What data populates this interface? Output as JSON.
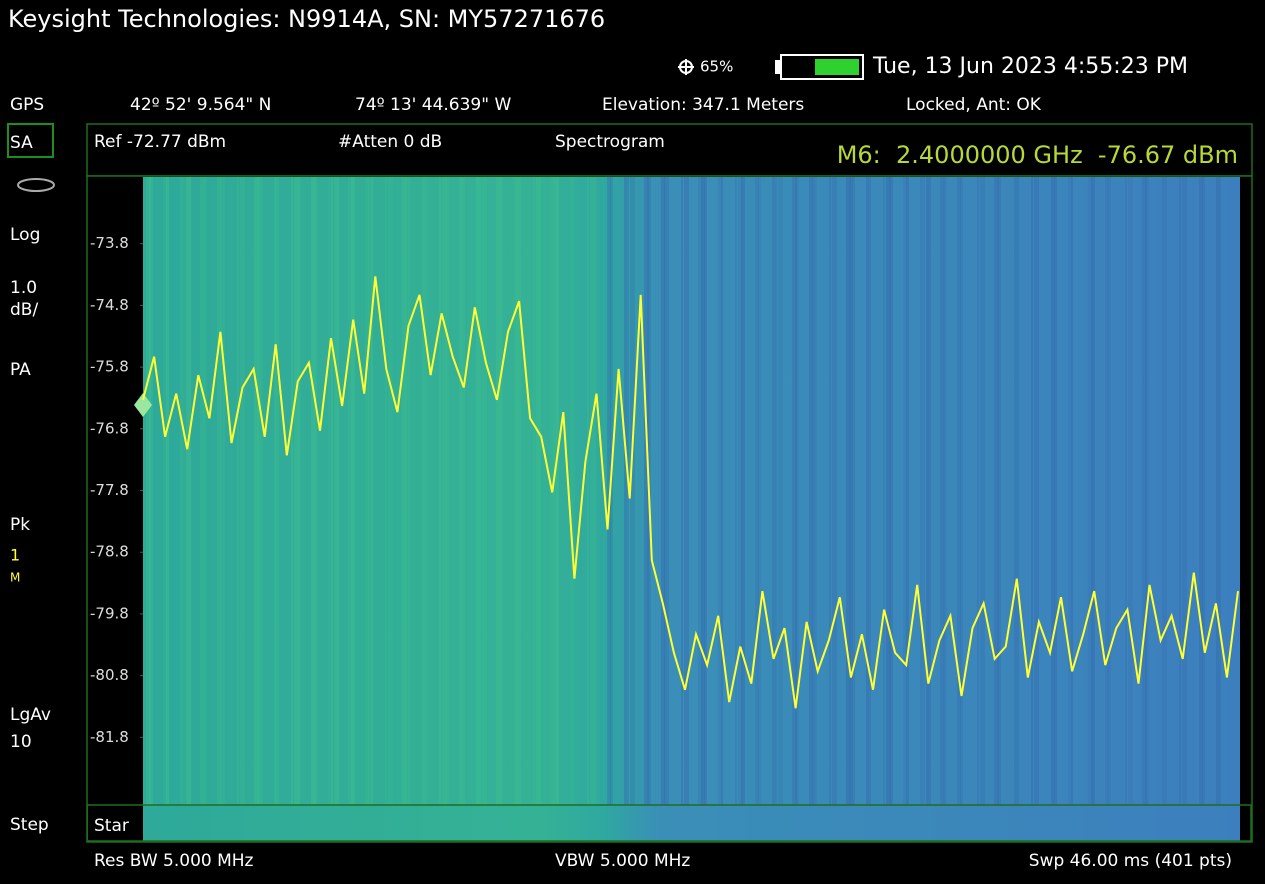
{
  "header": {
    "title": "Keysight Technologies: N9914A, SN: MY57271676",
    "gps_percent": "65%",
    "datetime": "Tue, 13 Jun 2023 4:55:23 PM"
  },
  "gps": {
    "label": "GPS",
    "latitude": "42º 52' 9.564\" N",
    "longitude": "74º 13' 44.639\" W",
    "elevation": "Elevation: 347.1 Meters",
    "status": "Locked, Ant: OK"
  },
  "sidebar": [
    "SA",
    "Log",
    "1.0",
    "dB/",
    "PA",
    "Pk",
    "1",
    "M",
    "LgAv",
    "10",
    "Step"
  ],
  "settings_bar": {
    "ref": "Ref -72.77 dBm",
    "atten": "#Atten 0 dB",
    "mode": "Spectrogram",
    "marker": "M6:  2.4000000 GHz  -76.67 dBm"
  },
  "chart_data": {
    "type": "line",
    "ylim": [
      -82.77,
      -72.77
    ],
    "yticks": [
      {
        "value": -73.77,
        "label": "-73.8"
      },
      {
        "value": -74.77,
        "label": "-74.8"
      },
      {
        "value": -75.77,
        "label": "-75.8"
      },
      {
        "value": -76.77,
        "label": "-76.8"
      },
      {
        "value": -77.77,
        "label": "-77.8"
      },
      {
        "value": -78.77,
        "label": "-78.8"
      },
      {
        "value": -79.77,
        "label": "-79.8"
      },
      {
        "value": -80.77,
        "label": "-80.8"
      },
      {
        "value": -81.77,
        "label": "-81.8"
      }
    ],
    "series": [
      {
        "color": "#ffff33",
        "values": [
          -76.3,
          -75.6,
          -76.9,
          -76.2,
          -77.1,
          -75.9,
          -76.6,
          -75.2,
          -77.0,
          -76.1,
          -75.8,
          -76.9,
          -75.4,
          -77.2,
          -76.0,
          -75.7,
          -76.8,
          -75.3,
          -76.4,
          -75.0,
          -76.2,
          -74.3,
          -75.8,
          -76.5,
          -75.1,
          -74.6,
          -75.9,
          -74.9,
          -75.6,
          -76.1,
          -74.8,
          -75.7,
          -76.3,
          -75.2,
          -74.7,
          -76.6,
          -76.9,
          -77.8,
          -76.5,
          -79.2,
          -77.3,
          -76.2,
          -78.4,
          -75.8,
          -77.9,
          -74.6,
          -78.9,
          -79.6,
          -80.4,
          -81.0,
          -80.1,
          -80.6,
          -79.8,
          -81.2,
          -80.3,
          -80.9,
          -79.4,
          -80.5,
          -80.0,
          -81.3,
          -79.9,
          -80.7,
          -80.2,
          -79.5,
          -80.8,
          -80.1,
          -81.0,
          -79.7,
          -80.4,
          -80.6,
          -79.3,
          -80.9,
          -80.2,
          -79.8,
          -81.1,
          -80.0,
          -79.6,
          -80.5,
          -80.3,
          -79.2,
          -80.8,
          -79.9,
          -80.4,
          -79.5,
          -80.7,
          -80.1,
          -79.4,
          -80.6,
          -80.0,
          -79.7,
          -80.9,
          -79.3,
          -80.2,
          -79.8,
          -80.5,
          -79.1,
          -80.4,
          -79.6,
          -80.8,
          -79.4
        ]
      }
    ]
  },
  "footer": {
    "start": "Star",
    "res_bw": "Res BW 5.000 MHz",
    "vbw": "VBW 5.000 MHz",
    "sweep": "Swp 46.00 ms (401 pts)"
  }
}
